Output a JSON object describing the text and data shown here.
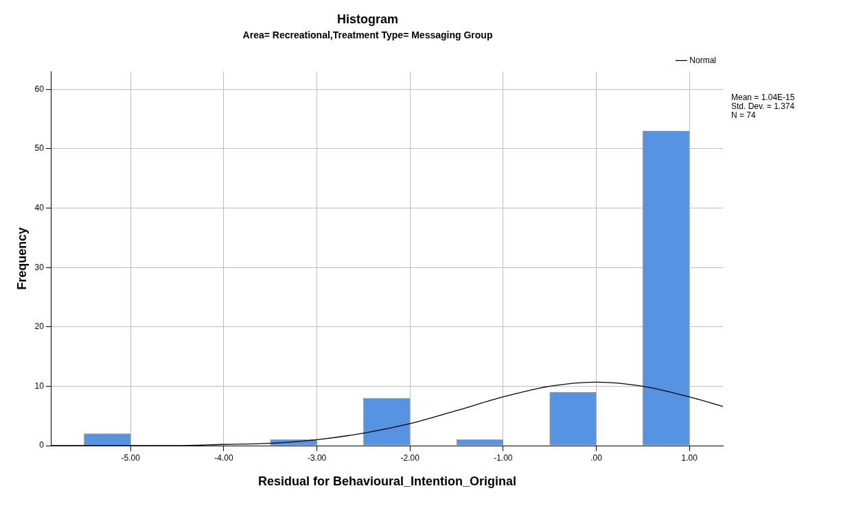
{
  "chart_data": {
    "type": "histogram",
    "title": "Histogram",
    "subtitle": "Area= Recreational,Treatment Type= Messaging Group",
    "xlabel": "Residual for Behavioural_Intention_Original",
    "ylabel": "Frequency",
    "bins": [
      -5.5,
      -5.0,
      -4.5,
      -4.0,
      -3.5,
      -3.0,
      -2.5,
      -2.0,
      -1.5,
      -1.0,
      -0.5,
      0.0,
      0.5,
      1.0
    ],
    "series": [
      {
        "color": "#5694e2",
        "values": [
          2,
          0,
          0,
          0,
          1,
          0,
          8,
          0,
          1,
          0,
          9,
          0,
          53
        ]
      },
      {
        "type": "line",
        "name": "Normal",
        "color": "#000000",
        "x": [
          -5.85,
          -5.0,
          -4.5,
          -4.0,
          -3.5,
          -3.0,
          -2.5,
          -2.0,
          -1.5,
          -1.0,
          -0.5,
          0.0,
          0.5,
          1.0,
          1.36
        ],
        "values": [
          0,
          0,
          0,
          0.2,
          0.4,
          1.0,
          2.1,
          3.7,
          5.9,
          8.2,
          10.0,
          10.7,
          10.0,
          8.2,
          6.6
        ]
      }
    ],
    "xlim": [
      -5.85,
      1.36
    ],
    "ylim": [
      0,
      63
    ],
    "xticks": [
      {
        "value": -5,
        "label": "-5.00"
      },
      {
        "value": -4,
        "label": "-4.00"
      },
      {
        "value": -3,
        "label": "-3.00"
      },
      {
        "value": -2,
        "label": "-2.00"
      },
      {
        "value": -1,
        "label": "-1.00"
      },
      {
        "value": 0,
        "label": ".00"
      },
      {
        "value": 1,
        "label": "1.00"
      }
    ],
    "yticks": [
      0,
      10,
      20,
      30,
      40,
      50,
      60
    ],
    "grid": true,
    "legend": "top right",
    "marker": "none",
    "line_style": "solid",
    "annotations": [
      "Mean = 1.04E-15",
      "Std. Dev. = 1.374",
      "N = 74"
    ]
  }
}
